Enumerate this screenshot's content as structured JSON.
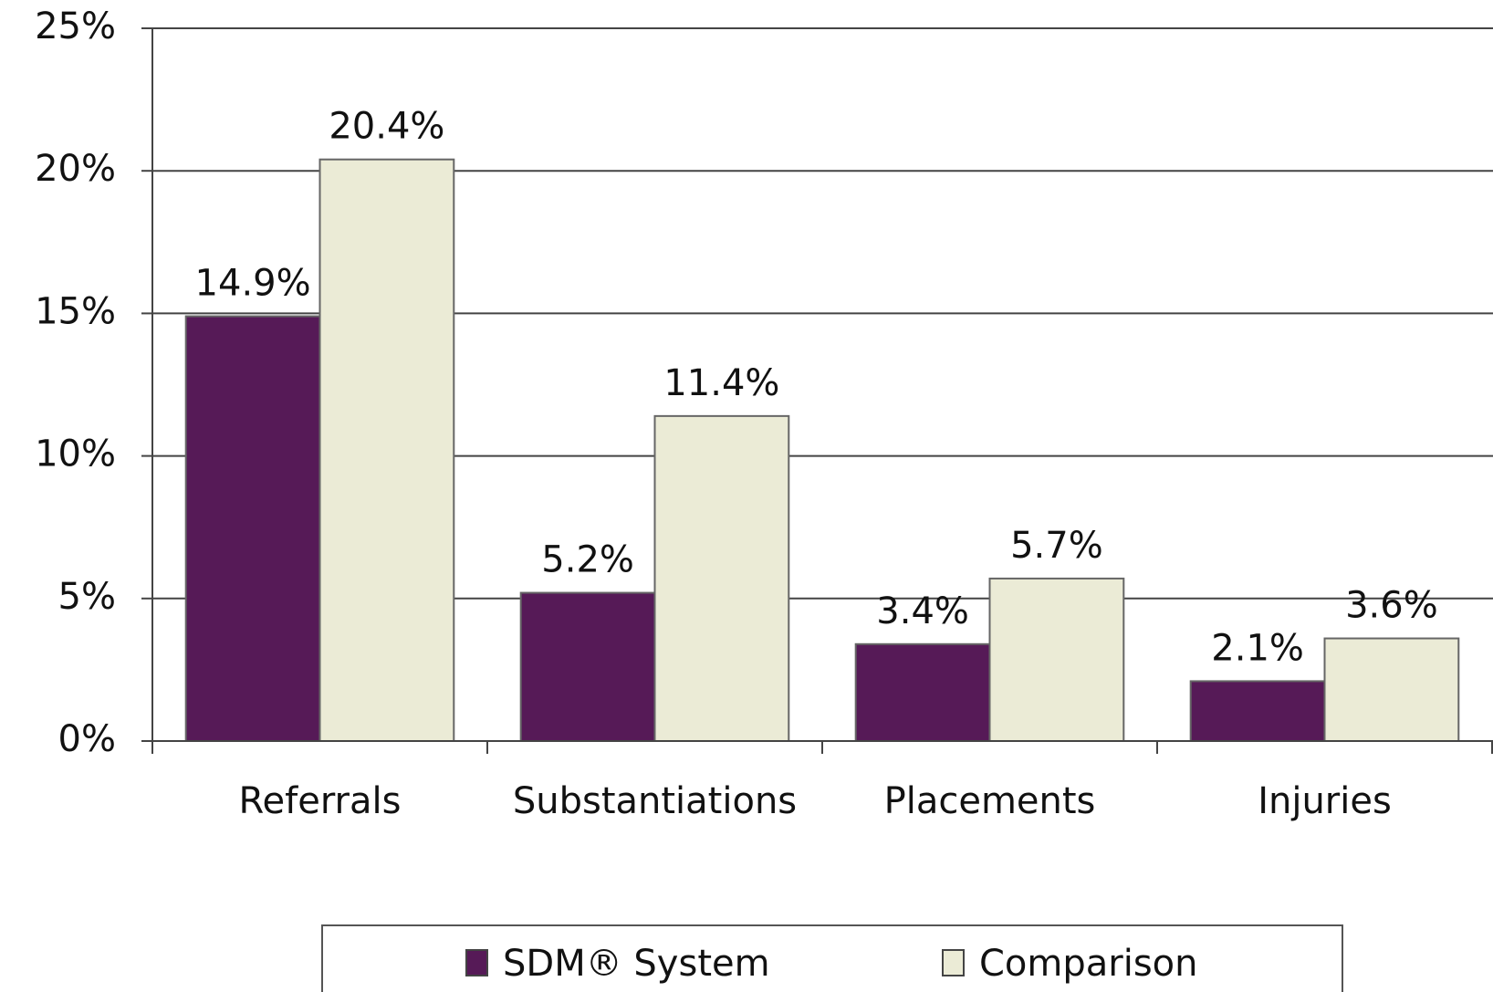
{
  "chart_data": {
    "type": "bar",
    "categories": [
      "Referrals",
      "Substantiations",
      "Placements",
      "Injuries"
    ],
    "series": [
      {
        "name": "SDM® System",
        "color": "#561a57",
        "values": [
          14.9,
          5.2,
          3.4,
          2.1
        ],
        "value_labels": [
          "14.9%",
          "5.2%",
          "3.4%",
          "2.1%"
        ]
      },
      {
        "name": "Comparison",
        "color": "#ebebd6",
        "values": [
          20.4,
          11.4,
          5.7,
          3.6
        ],
        "value_labels": [
          "20.4%",
          "11.4%",
          "5.7%",
          "3.6%"
        ]
      }
    ],
    "ylim": [
      0,
      25
    ],
    "yticks": [
      {
        "value": 0,
        "label": "0%"
      },
      {
        "value": 5,
        "label": "5%"
      },
      {
        "value": 10,
        "label": "10%"
      },
      {
        "value": 15,
        "label": "15%"
      },
      {
        "value": 20,
        "label": "20%"
      },
      {
        "value": 25,
        "label": "25%"
      }
    ],
    "grid": true,
    "legend": "bottom"
  }
}
